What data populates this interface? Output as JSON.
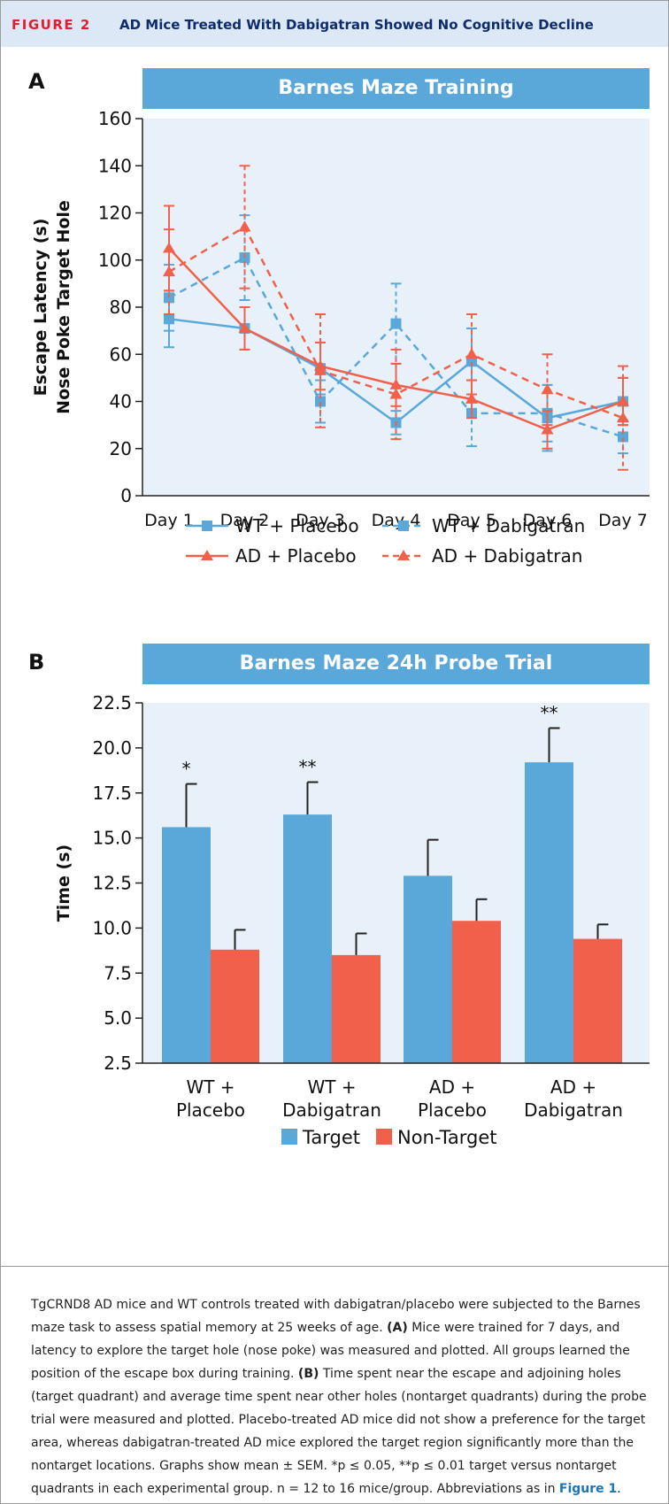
{
  "figure": {
    "label": "FIGURE 2",
    "title": "AD Mice Treated With Dabigatran Showed No Cognitive Decline"
  },
  "panelA": {
    "letter": "A",
    "banner": "Barnes Maze Training"
  },
  "panelB": {
    "letter": "B",
    "banner": "Barnes Maze 24h Probe Trial"
  },
  "colors": {
    "blue": "#5aa7da",
    "red": "#f0604a",
    "plot_bg": "#e8f1fa",
    "header_bg": "#dce8f5",
    "label_red": "#e0202f",
    "title_navy": "#0d2c6b"
  },
  "chart_data": [
    {
      "type": "line",
      "title": "Barnes Maze Training",
      "xlabel": "",
      "ylabel": "Escape Latency (s) Nose Poke Target Hole",
      "ylabel_lines": [
        "Escape Latency (s)",
        "Nose Poke Target Hole"
      ],
      "ylim": [
        0,
        160
      ],
      "yticks": [
        0,
        20,
        40,
        60,
        80,
        100,
        120,
        140,
        160
      ],
      "categories": [
        "Day 1",
        "Day 2",
        "Day 3",
        "Day 4",
        "Day 5",
        "Day 6",
        "Day 7"
      ],
      "legend_position": "bottom",
      "series": [
        {
          "name": "WT + Placebo",
          "color": "#5aa7da",
          "dashed": false,
          "marker": "square",
          "values": [
            75,
            71,
            54,
            31,
            57,
            33,
            40
          ],
          "err": [
            12,
            9,
            11,
            5,
            14,
            14,
            10
          ]
        },
        {
          "name": "WT + Dabigatran",
          "color": "#5aa7da",
          "dashed": true,
          "marker": "square",
          "values": [
            84,
            101,
            40,
            73,
            35,
            35,
            25
          ],
          "err": [
            14,
            18,
            9,
            17,
            14,
            12,
            7
          ]
        },
        {
          "name": "AD + Placebo",
          "color": "#f0604a",
          "dashed": false,
          "marker": "triangle",
          "values": [
            105,
            71,
            55,
            47,
            41,
            28,
            40
          ],
          "err": [
            18,
            9,
            10,
            9,
            8,
            8,
            10
          ]
        },
        {
          "name": "AD + Dabigatran",
          "color": "#f0604a",
          "dashed": true,
          "marker": "triangle",
          "values": [
            95,
            114,
            53,
            43,
            60,
            45,
            33
          ],
          "err": [
            18,
            26,
            24,
            19,
            17,
            15,
            22
          ]
        }
      ]
    },
    {
      "type": "bar",
      "title": "Barnes Maze 24h Probe Trial",
      "xlabel": "",
      "ylabel": "Time (s)",
      "ylim": [
        2.5,
        22.5
      ],
      "yticks": [
        "2.5",
        "5.0",
        "7.5",
        "10.0",
        "12.5",
        "15.0",
        "17.5",
        "20.0",
        "22.5"
      ],
      "categories": [
        [
          "WT +",
          "Placebo"
        ],
        [
          "WT +",
          "Dabigatran"
        ],
        [
          "AD +",
          "Placebo"
        ],
        [
          "AD +",
          "Dabigatran"
        ]
      ],
      "legend_position": "bottom",
      "series": [
        {
          "name": "Target",
          "color": "#5aa7da",
          "values": [
            15.6,
            16.3,
            12.9,
            19.2
          ],
          "err": [
            2.4,
            1.8,
            2.0,
            1.9
          ]
        },
        {
          "name": "Non-Target",
          "color": "#f0604a",
          "values": [
            8.8,
            8.5,
            10.4,
            9.4
          ],
          "err": [
            1.1,
            1.2,
            1.2,
            0.8
          ]
        }
      ],
      "significance": [
        "*",
        "**",
        "",
        "**"
      ]
    }
  ],
  "caption": {
    "p1": "TgCRND8 AD mice and WT controls treated with dabigatran/placebo were subjected to the Barnes maze task to assess spatial memory at 25 weeks of age. ",
    "labelA": "(A)",
    "p2": " Mice were trained for 7 days, and latency to explore the target hole (nose poke) was measured and plotted. All groups learned the position of the escape box during training. ",
    "labelB": "(B)",
    "p3": " Time spent near the escape and adjoining holes (target quadrant) and average time spent near other holes (nontarget quadrants) during the probe trial were measured and plotted. Placebo-treated AD mice did not show a preference for the target area, whereas dabigatran-treated AD mice explored the target region significantly more than the nontarget locations. Graphs show mean ± SEM. *p ≤ 0.05, **p ≤ 0.01 target versus nontarget quadrants in each experimental group. n = 12 to 16 mice/group. Abbreviations as in ",
    "ref": "Figure 1",
    "end": "."
  }
}
